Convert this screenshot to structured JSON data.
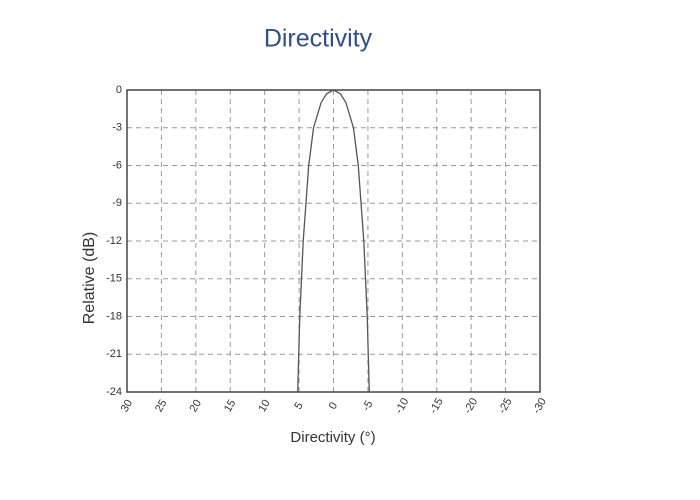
{
  "chart_data": {
    "type": "line",
    "title": "Directivity",
    "x_label": "Directivity (°)",
    "y_label": "Relative (dB)",
    "x": [
      -5.2,
      -4.9,
      -4.4,
      -3.6,
      -2.9,
      -1.8,
      -1,
      0,
      1,
      1.8,
      2.9,
      3.6,
      4.4,
      4.9,
      5.2
    ],
    "values": [
      -24,
      -18,
      -12,
      -6,
      -3,
      -1,
      -0.3,
      0,
      -0.3,
      -1,
      -3,
      -6,
      -12,
      -18,
      -24
    ],
    "color": "#555555",
    "xlim": [
      30,
      -30
    ],
    "xticks": [
      30,
      25,
      20,
      15,
      10,
      5,
      0,
      -5,
      -10,
      -15,
      -20,
      -25,
      -30
    ],
    "ylim": [
      -24,
      0
    ],
    "yticks": [
      0,
      -3,
      -6,
      -9,
      -12,
      -15,
      -18,
      -21,
      -24
    ],
    "grid": true
  }
}
